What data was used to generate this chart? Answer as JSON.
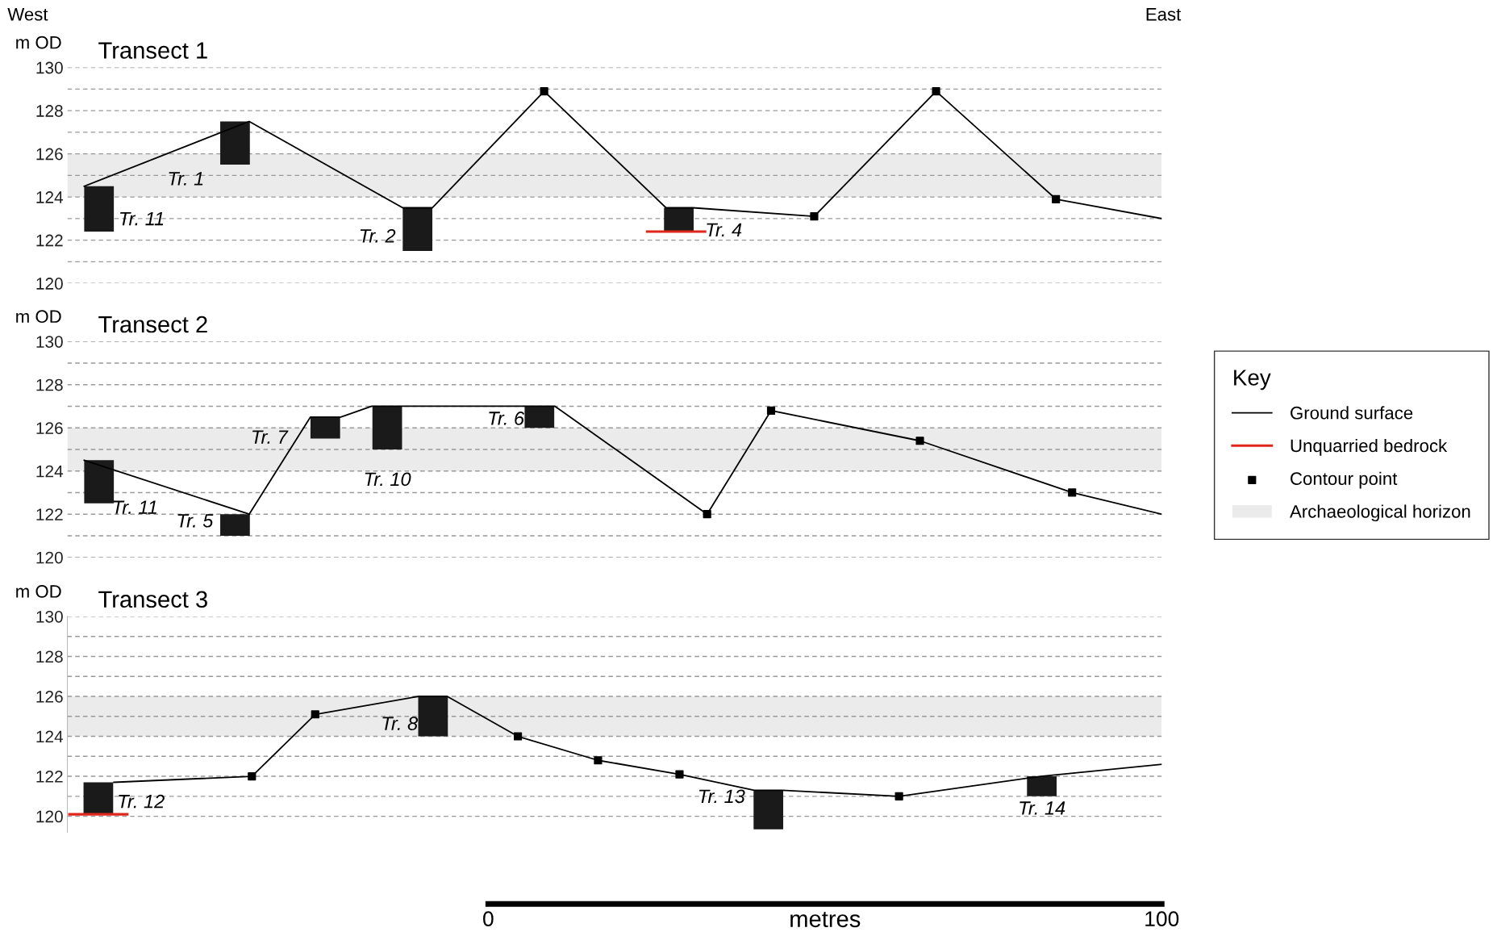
{
  "chart_data": [
    {
      "type": "line",
      "title": "Transect 1",
      "ylabel": "m OD",
      "xlim": [
        -62.5,
        100
      ],
      "ylim": [
        120,
        130
      ],
      "yticks": [
        120,
        {
          "value": 121,
          "label": null
        },
        122,
        {
          "value": 123,
          "label": null
        },
        124,
        {
          "value": 125,
          "label": null
        },
        126,
        {
          "value": 127,
          "label": null
        },
        128,
        {
          "value": 129,
          "label": null
        },
        130
      ],
      "grid": "y",
      "tick_labels": "y",
      "legend": "right",
      "legend_title": "Key",
      "bands": [
        {
          "axis": "y",
          "from": 124,
          "to": 126,
          "label": "Archaeological horizon",
          "color": "#ebebeb"
        }
      ],
      "series": [
        {
          "type": "bar",
          "color": "#1a1a1a",
          "x": [
            -57.8,
            -37.6,
            -10.5,
            28.3
          ],
          "base": [
            122.4,
            125.5,
            121.5,
            122.4
          ],
          "values": [
            2.1,
            2.0,
            2.0,
            1.1
          ]
        },
        {
          "name": "Ground surface",
          "color": "#000000",
          "x": [
            -60,
            -35.5,
            -12.7,
            -8.3,
            8.3,
            26.4,
            30.4,
            48.4,
            66.5,
            84.3,
            100
          ],
          "values": [
            124.5,
            127.5,
            123.5,
            123.5,
            128.9,
            123.5,
            123.5,
            123.1,
            128.9,
            123.9,
            123.0
          ]
        },
        {
          "name": "Unquarried bedrock",
          "color": "#e0261b",
          "x": [
            23.6,
            32.2
          ],
          "values": [
            122.4,
            122.4
          ]
        },
        {
          "type": "scatter",
          "name": "Contour point",
          "color": "#000000",
          "marker": "square",
          "x": [
            8.3,
            48.4,
            66.5,
            84.3
          ],
          "values": [
            128.9,
            123.1,
            128.9,
            123.9
          ]
        }
      ],
      "annotations": [
        "West",
        "East",
        "Tr. 11",
        "Tr. 1",
        "Tr. 2",
        "Tr. 4"
      ]
    },
    {
      "type": "line",
      "title": "Transect 2",
      "ylabel": "m OD",
      "xlim": [
        -62.5,
        100
      ],
      "ylim": [
        120,
        130
      ],
      "yticks": [
        120,
        {
          "value": 121,
          "label": null
        },
        122,
        {
          "value": 123,
          "label": null
        },
        124,
        {
          "value": 125,
          "label": null
        },
        126,
        {
          "value": 127,
          "label": null
        },
        128,
        {
          "value": 129,
          "label": null
        },
        130
      ],
      "grid": "y",
      "tick_labels": "y",
      "bands": [
        {
          "axis": "y",
          "from": 124,
          "to": 126,
          "color": "#ebebeb"
        }
      ],
      "series": [
        {
          "type": "bar",
          "color": "#1a1a1a",
          "x": [
            -57.8,
            -37.6,
            -24.2,
            -15.0,
            7.6
          ],
          "base": [
            122.5,
            121.0,
            125.5,
            125.0,
            126.0
          ],
          "values": [
            2.0,
            1.0,
            1.0,
            2.0,
            1.0
          ]
        },
        {
          "color": "#000000",
          "x": [
            -60,
            -35.5,
            -26.4,
            -21.9,
            -17.3,
            9.9,
            32.5,
            42.0,
            64.1,
            86.7,
            100
          ],
          "values": [
            124.5,
            122.0,
            126.5,
            126.5,
            127.0,
            127.0,
            122.0,
            126.8,
            125.4,
            123.0,
            122.0
          ]
        },
        {
          "type": "scatter",
          "color": "#000000",
          "marker": "square",
          "x": [
            32.5,
            42.0,
            64.1,
            86.7
          ],
          "values": [
            122.0,
            126.8,
            125.4,
            123.0
          ]
        }
      ],
      "annotations": [
        "Tr. 11",
        "Tr. 5",
        "Tr. 7",
        "Tr. 10",
        "Tr. 6"
      ]
    },
    {
      "type": "line",
      "title": "Transect 3",
      "ylabel": "m OD",
      "xlabel": "metres",
      "xlim": [
        -62.5,
        100
      ],
      "ylim": [
        119.2,
        130
      ],
      "xticks": [
        0,
        100
      ],
      "yticks": [
        120,
        {
          "value": 121,
          "label": null
        },
        122,
        {
          "value": 123,
          "label": null
        },
        124,
        {
          "value": 125,
          "label": null
        },
        126,
        {
          "value": 127,
          "label": null
        },
        128,
        {
          "value": 129,
          "label": null
        },
        130
      ],
      "grid": "y",
      "bands": [
        {
          "axis": "y",
          "from": 124,
          "to": 126,
          "color": "#ebebeb"
        }
      ],
      "series": [
        {
          "type": "bar",
          "color": "#1a1a1a",
          "x": [
            -57.9,
            -8.2,
            41.6,
            82.2
          ],
          "base": [
            120.1,
            124.0,
            119.35,
            121.0
          ],
          "values": [
            1.6,
            2.0,
            1.95,
            1.0
          ]
        },
        {
          "color": "#000000",
          "x": [
            -55.6,
            -35.1,
            -25.7,
            -10.3,
            -6.1,
            4.4,
            16.3,
            28.4,
            39.5,
            43.7,
            61.0,
            82.0,
            100
          ],
          "values": [
            121.7,
            122.0,
            125.1,
            126.0,
            126.0,
            124.0,
            122.8,
            122.1,
            121.3,
            121.3,
            121.0,
            122.0,
            122.6
          ]
        },
        {
          "color": "#e0261b",
          "x": [
            -62.2,
            -53.6
          ],
          "values": [
            120.1,
            120.1
          ]
        },
        {
          "type": "scatter",
          "color": "#000000",
          "marker": "square",
          "x": [
            -35.1,
            -25.7,
            4.4,
            16.3,
            28.4,
            61.0
          ],
          "values": [
            122.0,
            125.1,
            124.0,
            122.8,
            122.1,
            121.0
          ]
        }
      ],
      "annotations": [
        "Tr. 12",
        "Tr. 8",
        "Tr. 13",
        "Tr. 14"
      ]
    }
  ]
}
